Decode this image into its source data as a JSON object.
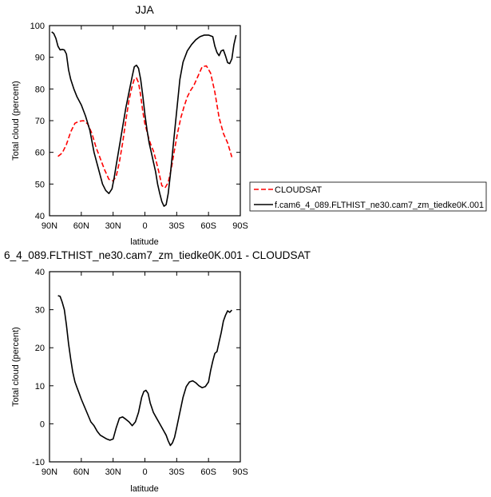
{
  "chart_data": [
    {
      "type": "line",
      "title": "JJA",
      "xlabel": "latitude",
      "ylabel": "Total cloud (percent)",
      "xlim": [
        -90,
        90
      ],
      "ylim": [
        40,
        100
      ],
      "x_ticks": [
        -90,
        -60,
        -30,
        0,
        30,
        60,
        90
      ],
      "x_tick_labels": [
        "90N",
        "60N",
        "30N",
        "0",
        "30S",
        "60S",
        "90S"
      ],
      "y_ticks": [
        40,
        50,
        60,
        70,
        80,
        90,
        100
      ],
      "grid": false,
      "legend_position": "right",
      "series": [
        {
          "name": "CLOUDSAT",
          "color": "#ff0000",
          "dash": "dashed",
          "x": [
            -82,
            -78,
            -74,
            -70,
            -66,
            -62,
            -58,
            -54,
            -50,
            -46,
            -42,
            -38,
            -34,
            -30,
            -27,
            -24,
            -21,
            -18,
            -15,
            -12,
            -10,
            -8,
            -6,
            -4,
            -2,
            0,
            2,
            4,
            6,
            8,
            10,
            13,
            16,
            19,
            22,
            25,
            28,
            31,
            34,
            37,
            40,
            43,
            46,
            50,
            54,
            58,
            62,
            66,
            70,
            74,
            78,
            82
          ],
          "y": [
            58.7,
            59.8,
            62.5,
            66.5,
            69.2,
            69.8,
            70.0,
            69.0,
            66.0,
            61.5,
            58.0,
            54.5,
            51.5,
            51.0,
            52.5,
            57.0,
            63.0,
            70.0,
            76.5,
            81.0,
            83.0,
            83.5,
            82.0,
            78.0,
            73.0,
            69.0,
            66.5,
            64.0,
            62.0,
            60.5,
            58.0,
            54.0,
            49.5,
            48.8,
            50.5,
            55.0,
            61.0,
            66.5,
            71.0,
            74.5,
            77.5,
            79.5,
            81.0,
            84.0,
            87.0,
            87.3,
            85.0,
            79.0,
            71.0,
            66.0,
            63.0,
            58.5
          ]
        },
        {
          "name": "f.cam6_4_089.FLTHIST_ne30.cam7_zm_tiedke0K.001",
          "color": "#000000",
          "dash": "solid",
          "x": [
            -88,
            -86,
            -84,
            -82,
            -80,
            -78,
            -76,
            -74,
            -72,
            -70,
            -67,
            -64,
            -60,
            -56,
            -52,
            -48,
            -44,
            -40,
            -37,
            -34,
            -31,
            -29,
            -27,
            -24,
            -21,
            -18,
            -15,
            -12,
            -10,
            -8,
            -6,
            -4,
            -2,
            0,
            2,
            4,
            6,
            8,
            10,
            12,
            14,
            16,
            18,
            20,
            22,
            24,
            27,
            30,
            33,
            36,
            40,
            44,
            48,
            52,
            56,
            60,
            64,
            66,
            68,
            70,
            72,
            74,
            76,
            78,
            80,
            82,
            84,
            86
          ],
          "y": [
            98.0,
            97.5,
            96.0,
            93.5,
            92.3,
            92.5,
            92.3,
            91.0,
            86.0,
            83.0,
            80.0,
            77.5,
            75.0,
            71.5,
            67.0,
            60.0,
            55.0,
            50.0,
            48.0,
            47.0,
            48.5,
            52.0,
            56.0,
            62.0,
            68.0,
            74.0,
            79.0,
            84.0,
            87.0,
            87.5,
            86.5,
            83.0,
            78.0,
            72.0,
            67.0,
            63.0,
            60.0,
            57.0,
            54.0,
            50.0,
            47.0,
            44.5,
            43.0,
            43.5,
            47.0,
            53.0,
            63.0,
            73.0,
            83.0,
            88.5,
            92.0,
            94.0,
            95.5,
            96.5,
            97.0,
            97.0,
            96.5,
            93.5,
            91.5,
            90.5,
            92.0,
            92.3,
            90.5,
            88.3,
            88.0,
            89.5,
            94.0,
            97.0
          ]
        }
      ]
    },
    {
      "type": "line",
      "title": "6_4_089.FLTHIST_ne30.cam7_zm_tiedke0K.001 - CLOUDSAT",
      "xlabel": "latitude",
      "ylabel": "Total cloud (percent)",
      "xlim": [
        -90,
        90
      ],
      "ylim": [
        -10,
        40
      ],
      "x_ticks": [
        -90,
        -60,
        -30,
        0,
        30,
        60,
        90
      ],
      "x_tick_labels": [
        "90N",
        "60N",
        "30N",
        "0",
        "30S",
        "60S",
        "90S"
      ],
      "y_ticks": [
        -10,
        0,
        10,
        20,
        30,
        40
      ],
      "grid": false,
      "series": [
        {
          "color": "#000000",
          "dash": "solid",
          "x": [
            -82,
            -80,
            -78,
            -76,
            -74,
            -72,
            -70,
            -68,
            -66,
            -64,
            -62,
            -60,
            -57,
            -54,
            -51,
            -48,
            -45,
            -42,
            -39,
            -36,
            -33,
            -30,
            -27,
            -24,
            -21,
            -18,
            -15,
            -12,
            -9,
            -6,
            -3,
            -1,
            1,
            3,
            5,
            8,
            11,
            14,
            17,
            20,
            22,
            24,
            26,
            28,
            30,
            33,
            36,
            39,
            42,
            45,
            48,
            51,
            54,
            57,
            60,
            62,
            64,
            66,
            68,
            70,
            72,
            74,
            76,
            78,
            80,
            82
          ],
          "y": [
            33.7,
            33.5,
            32.0,
            30.0,
            26.0,
            21.0,
            17.0,
            13.5,
            11.0,
            9.5,
            8.0,
            6.5,
            4.5,
            2.5,
            0.5,
            -0.5,
            -2.0,
            -3.0,
            -3.5,
            -4.0,
            -4.3,
            -4.0,
            -1.0,
            1.5,
            1.8,
            1.2,
            0.5,
            -0.5,
            0.5,
            3.0,
            7.0,
            8.5,
            8.8,
            8.0,
            5.5,
            3.0,
            1.5,
            0.0,
            -1.5,
            -3.0,
            -4.5,
            -5.7,
            -5.0,
            -3.5,
            -1.0,
            3.0,
            7.0,
            9.8,
            11.0,
            11.3,
            10.8,
            10.0,
            9.5,
            9.8,
            11.0,
            14.0,
            16.5,
            18.5,
            19.0,
            21.5,
            24.0,
            27.0,
            28.5,
            29.7,
            29.3,
            29.9
          ]
        }
      ]
    }
  ],
  "legend": {
    "entries": [
      {
        "label": "CLOUDSAT",
        "color": "#ff0000",
        "dash": "dashed"
      },
      {
        "label": "f.cam6_4_089.FLTHIST_ne30.cam7_zm_tiedke0K.001",
        "color": "#000000",
        "dash": "solid"
      }
    ]
  }
}
